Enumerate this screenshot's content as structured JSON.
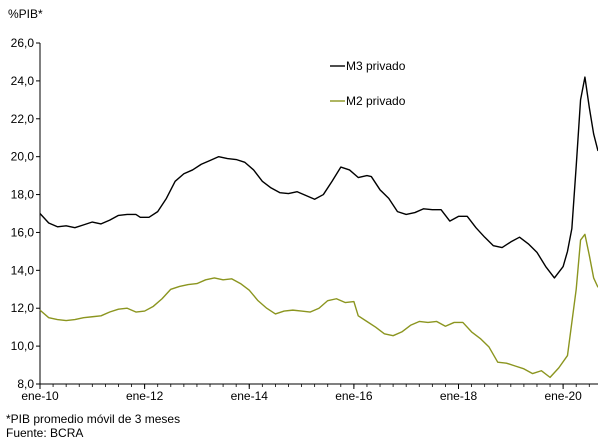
{
  "chart_data": {
    "type": "line",
    "unit_label": "%PIB*",
    "ylim": [
      8.0,
      26.0
    ],
    "yticks": [
      "8,0",
      "10,0",
      "12,0",
      "14,0",
      "16,0",
      "18,0",
      "20,0",
      "22,0",
      "24,0",
      "26,0"
    ],
    "ytick_values": [
      8,
      10,
      12,
      14,
      16,
      18,
      20,
      22,
      24,
      26
    ],
    "xlim": [
      "2010-01",
      "2020-09"
    ],
    "xticks": [
      "ene-10",
      "ene-12",
      "ene-14",
      "ene-16",
      "ene-18",
      "ene-20"
    ],
    "xtick_values": [
      "2010-01",
      "2012-01",
      "2014-01",
      "2016-01",
      "2018-01",
      "2020-01"
    ],
    "legend_position": "top-right",
    "grid": false,
    "series": [
      {
        "name": "M3 privado",
        "color": "#000000",
        "points": [
          [
            "2010-01",
            17.0
          ],
          [
            "2010-03",
            16.5
          ],
          [
            "2010-05",
            16.3
          ],
          [
            "2010-07",
            16.35
          ],
          [
            "2010-09",
            16.25
          ],
          [
            "2010-11",
            16.4
          ],
          [
            "2011-01",
            16.55
          ],
          [
            "2011-03",
            16.45
          ],
          [
            "2011-05",
            16.65
          ],
          [
            "2011-07",
            16.9
          ],
          [
            "2011-09",
            16.95
          ],
          [
            "2011-11",
            16.95
          ],
          [
            "2011-12",
            16.8
          ],
          [
            "2012-02",
            16.8
          ],
          [
            "2012-04",
            17.1
          ],
          [
            "2012-06",
            17.8
          ],
          [
            "2012-08",
            18.7
          ],
          [
            "2012-10",
            19.1
          ],
          [
            "2012-12",
            19.3
          ],
          [
            "2013-02",
            19.6
          ],
          [
            "2013-04",
            19.8
          ],
          [
            "2013-06",
            20.0
          ],
          [
            "2013-08",
            19.9
          ],
          [
            "2013-10",
            19.85
          ],
          [
            "2013-12",
            19.7
          ],
          [
            "2014-02",
            19.3
          ],
          [
            "2014-04",
            18.7
          ],
          [
            "2014-06",
            18.35
          ],
          [
            "2014-08",
            18.1
          ],
          [
            "2014-10",
            18.05
          ],
          [
            "2014-12",
            18.15
          ],
          [
            "2015-02",
            17.95
          ],
          [
            "2015-04",
            17.75
          ],
          [
            "2015-06",
            18.0
          ],
          [
            "2015-08",
            18.7
          ],
          [
            "2015-10",
            19.45
          ],
          [
            "2015-12",
            19.3
          ],
          [
            "2016-02",
            18.9
          ],
          [
            "2016-04",
            19.0
          ],
          [
            "2016-05",
            18.95
          ],
          [
            "2016-07",
            18.25
          ],
          [
            "2016-09",
            17.8
          ],
          [
            "2016-11",
            17.1
          ],
          [
            "2017-01",
            16.95
          ],
          [
            "2017-03",
            17.05
          ],
          [
            "2017-05",
            17.25
          ],
          [
            "2017-07",
            17.2
          ],
          [
            "2017-09",
            17.2
          ],
          [
            "2017-11",
            16.6
          ],
          [
            "2018-01",
            16.85
          ],
          [
            "2018-03",
            16.85
          ],
          [
            "2018-05",
            16.25
          ],
          [
            "2018-07",
            15.75
          ],
          [
            "2018-09",
            15.3
          ],
          [
            "2018-11",
            15.2
          ],
          [
            "2019-01",
            15.5
          ],
          [
            "2019-03",
            15.75
          ],
          [
            "2019-05",
            15.4
          ],
          [
            "2019-07",
            14.95
          ],
          [
            "2019-09",
            14.2
          ],
          [
            "2019-11",
            13.6
          ],
          [
            "2020-01",
            14.2
          ],
          [
            "2020-02",
            15.0
          ],
          [
            "2020-03",
            16.2
          ],
          [
            "2020-04",
            19.5
          ],
          [
            "2020-05",
            23.0
          ],
          [
            "2020-06",
            24.2
          ],
          [
            "2020-07",
            22.6
          ],
          [
            "2020-08",
            21.2
          ],
          [
            "2020-09",
            20.3
          ]
        ]
      },
      {
        "name": "M2 privado",
        "color": "#8b951f",
        "points": [
          [
            "2010-01",
            11.9
          ],
          [
            "2010-03",
            11.5
          ],
          [
            "2010-05",
            11.4
          ],
          [
            "2010-07",
            11.35
          ],
          [
            "2010-09",
            11.4
          ],
          [
            "2010-11",
            11.5
          ],
          [
            "2011-01",
            11.55
          ],
          [
            "2011-03",
            11.6
          ],
          [
            "2011-05",
            11.8
          ],
          [
            "2011-07",
            11.95
          ],
          [
            "2011-09",
            12.0
          ],
          [
            "2011-11",
            11.8
          ],
          [
            "2012-01",
            11.85
          ],
          [
            "2012-03",
            12.1
          ],
          [
            "2012-05",
            12.5
          ],
          [
            "2012-07",
            13.0
          ],
          [
            "2012-09",
            13.15
          ],
          [
            "2012-11",
            13.25
          ],
          [
            "2013-01",
            13.3
          ],
          [
            "2013-03",
            13.5
          ],
          [
            "2013-05",
            13.6
          ],
          [
            "2013-07",
            13.5
          ],
          [
            "2013-09",
            13.55
          ],
          [
            "2013-11",
            13.3
          ],
          [
            "2014-01",
            12.95
          ],
          [
            "2014-03",
            12.4
          ],
          [
            "2014-05",
            12.0
          ],
          [
            "2014-07",
            11.7
          ],
          [
            "2014-09",
            11.85
          ],
          [
            "2014-11",
            11.9
          ],
          [
            "2015-01",
            11.85
          ],
          [
            "2015-03",
            11.8
          ],
          [
            "2015-05",
            12.0
          ],
          [
            "2015-07",
            12.4
          ],
          [
            "2015-09",
            12.5
          ],
          [
            "2015-11",
            12.3
          ],
          [
            "2016-01",
            12.35
          ],
          [
            "2016-02",
            11.6
          ],
          [
            "2016-04",
            11.3
          ],
          [
            "2016-06",
            11.0
          ],
          [
            "2016-08",
            10.65
          ],
          [
            "2016-10",
            10.55
          ],
          [
            "2016-12",
            10.75
          ],
          [
            "2017-02",
            11.1
          ],
          [
            "2017-04",
            11.3
          ],
          [
            "2017-06",
            11.25
          ],
          [
            "2017-08",
            11.3
          ],
          [
            "2017-10",
            11.05
          ],
          [
            "2017-12",
            11.25
          ],
          [
            "2018-02",
            11.25
          ],
          [
            "2018-04",
            10.75
          ],
          [
            "2018-06",
            10.4
          ],
          [
            "2018-08",
            9.95
          ],
          [
            "2018-10",
            9.15
          ],
          [
            "2018-12",
            9.1
          ],
          [
            "2019-02",
            8.95
          ],
          [
            "2019-04",
            8.8
          ],
          [
            "2019-06",
            8.55
          ],
          [
            "2019-08",
            8.7
          ],
          [
            "2019-10",
            8.35
          ],
          [
            "2019-12",
            8.85
          ],
          [
            "2020-02",
            9.5
          ],
          [
            "2020-04",
            13.0
          ],
          [
            "2020-05",
            15.6
          ],
          [
            "2020-06",
            15.9
          ],
          [
            "2020-07",
            14.8
          ],
          [
            "2020-08",
            13.6
          ],
          [
            "2020-09",
            13.1
          ]
        ]
      }
    ]
  },
  "footnotes": {
    "note": "*PIB promedio móvil de 3 meses",
    "source": "Fuente: BCRA"
  }
}
